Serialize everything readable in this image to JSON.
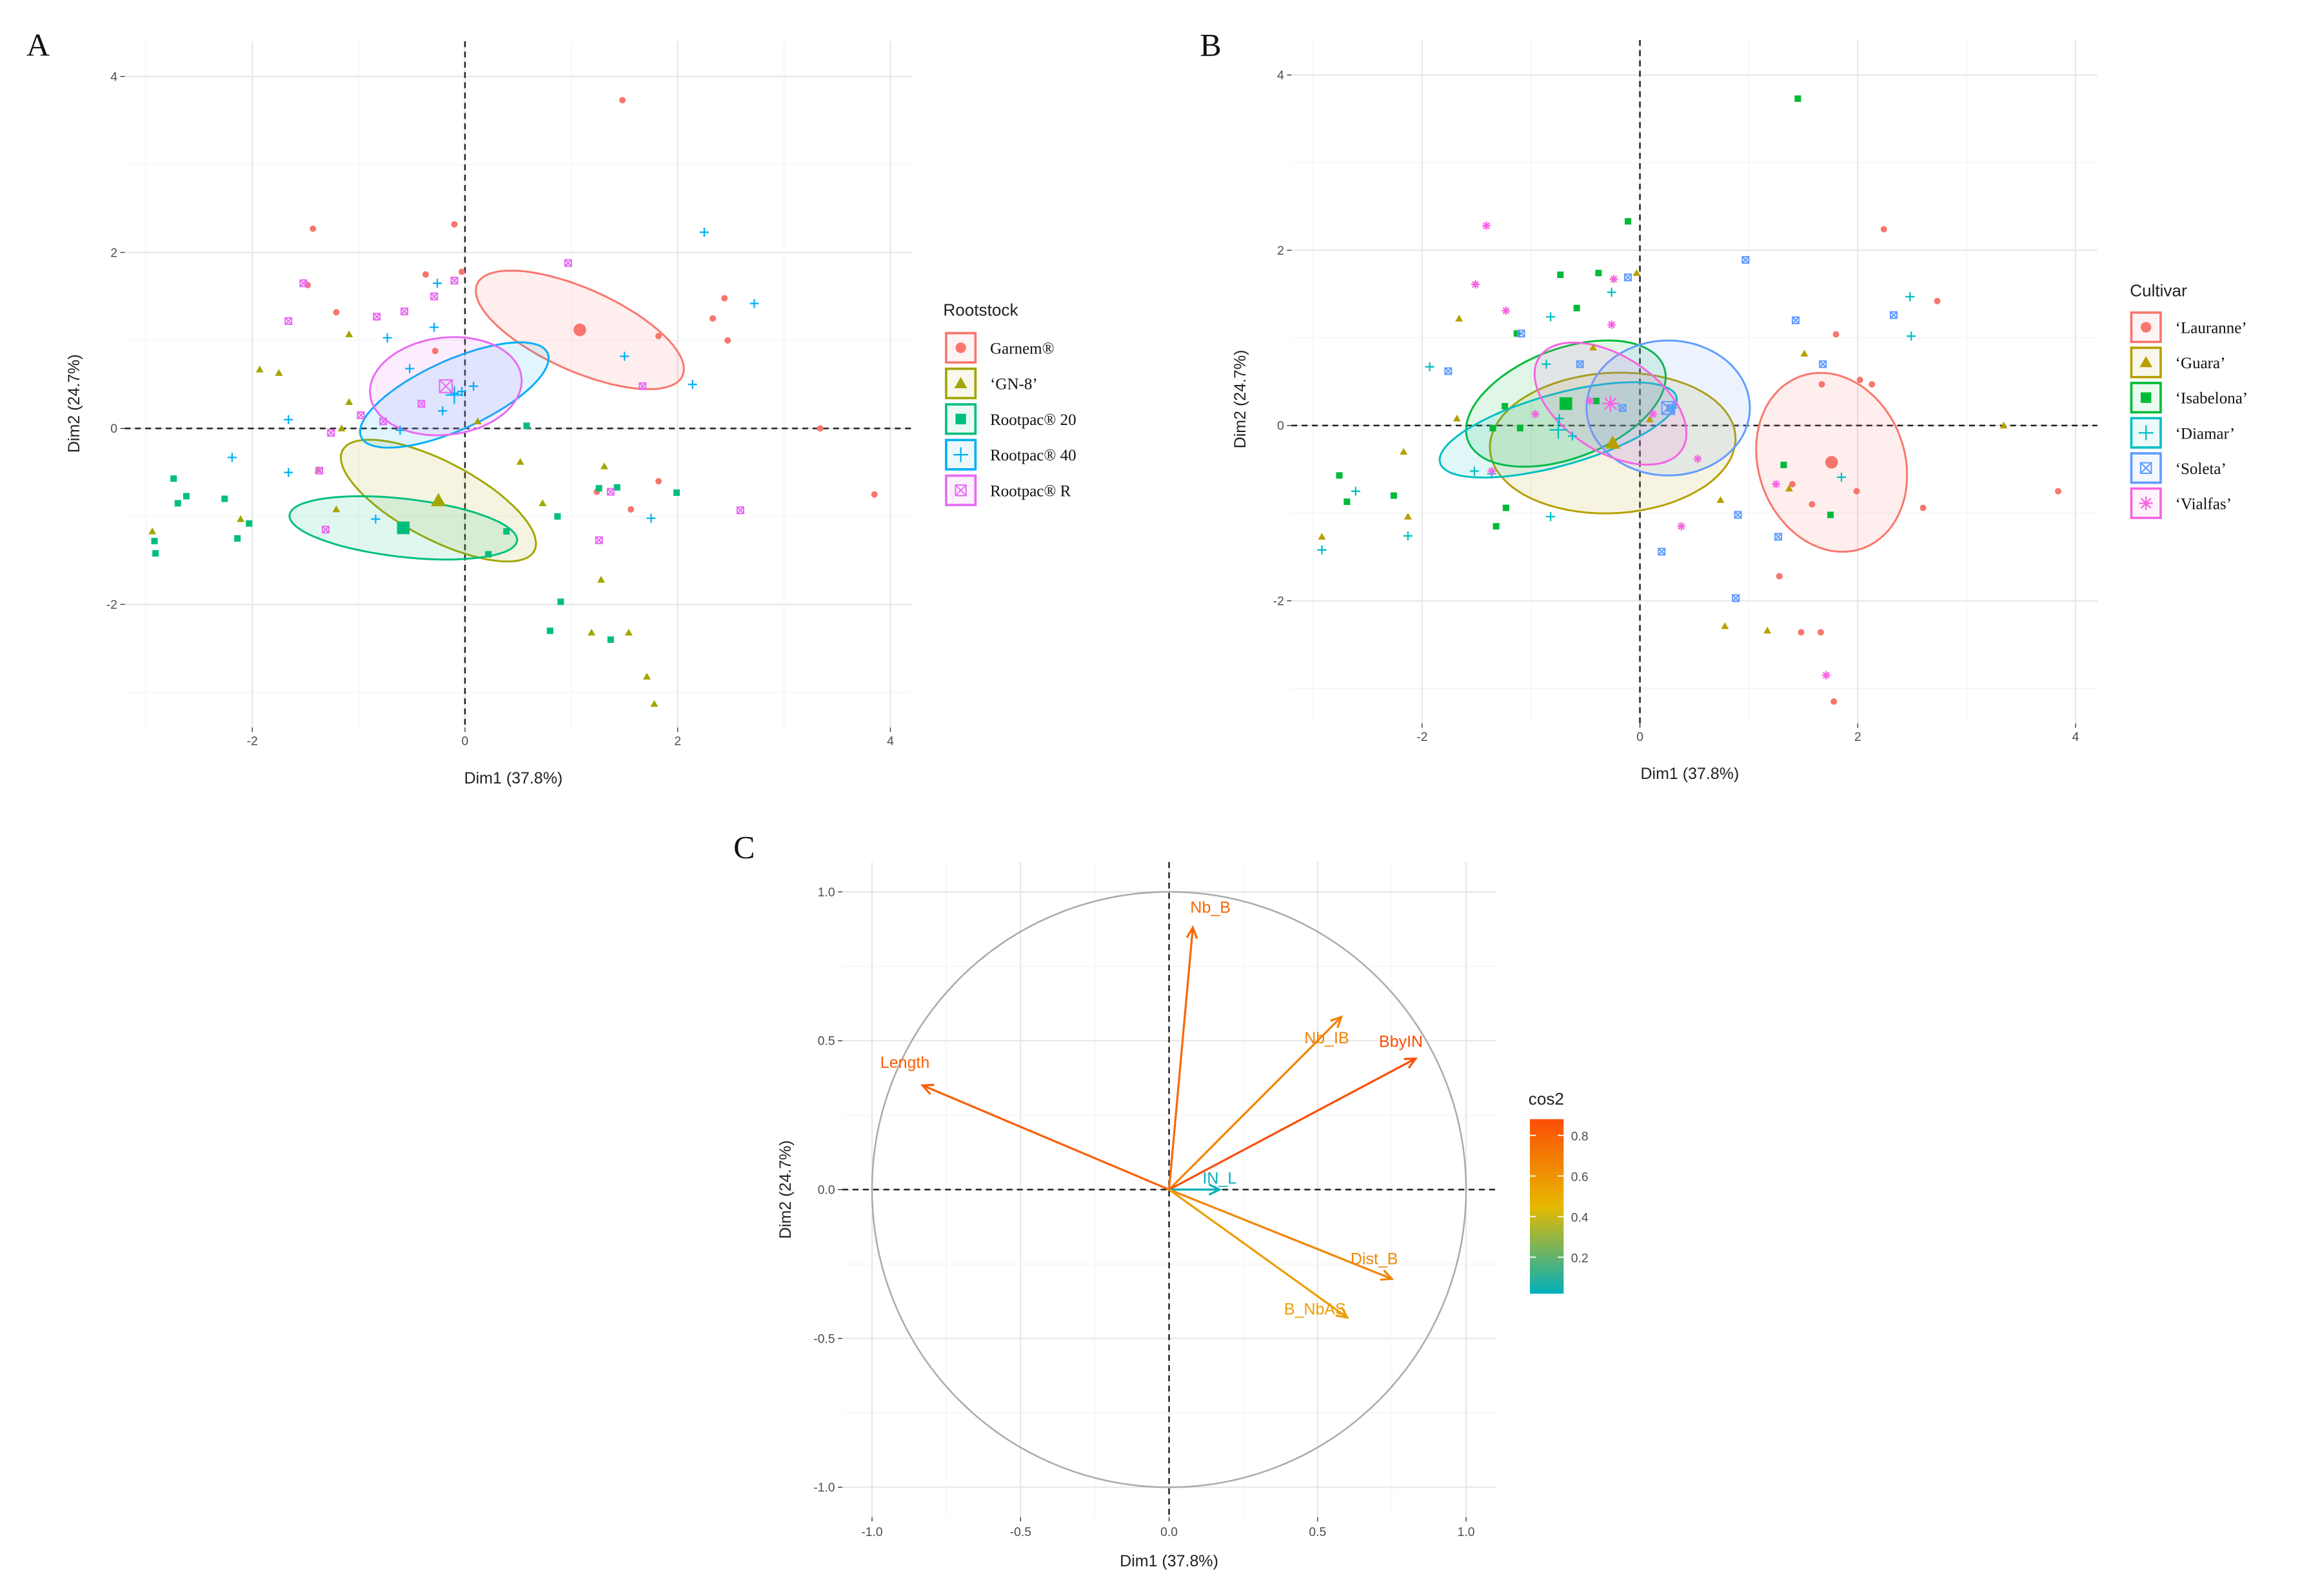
{
  "chart_data": [
    {
      "panel": "A",
      "type": "scatter",
      "xlabel": "Dim1 (37.8%)",
      "ylabel": "Dim2 (24.7%)",
      "xlim": [
        -3.2,
        4.2
      ],
      "ylim": [
        -3.4,
        4.4
      ],
      "xticks": [
        "-2",
        "0",
        "2",
        "4"
      ],
      "yticks": [
        "-2",
        "0",
        "2",
        "4"
      ],
      "grid": true,
      "legend": {
        "title": "Rootstock",
        "placement": "right"
      },
      "series": [
        {
          "name": "Garnem®",
          "shape": "circle",
          "color": "#F8766D",
          "mean": [
            1.08,
            1.12
          ],
          "ellipse": {
            "a": 1.1,
            "b": 0.45,
            "angle": -30
          },
          "points": [
            [
              1.48,
              3.73
            ],
            [
              -1.43,
              2.27
            ],
            [
              -0.1,
              2.32
            ],
            [
              -0.37,
              1.75
            ],
            [
              -0.03,
              1.78
            ],
            [
              -1.48,
              1.63
            ],
            [
              -1.21,
              1.32
            ],
            [
              -0.28,
              0.88
            ],
            [
              2.33,
              1.25
            ],
            [
              2.44,
              1.48
            ],
            [
              2.47,
              1.0
            ],
            [
              1.82,
              1.05
            ],
            [
              3.34,
              0
            ],
            [
              3.85,
              -0.75
            ],
            [
              1.82,
              -0.6
            ],
            [
              1.56,
              -0.92
            ],
            [
              1.24,
              -0.72
            ]
          ]
        },
        {
          "name": "‘GN-8’",
          "shape": "triangle",
          "color": "#A3A500",
          "mean": [
            -0.25,
            -0.82
          ],
          "ellipse": {
            "a": 1.07,
            "b": 0.42,
            "angle": -34
          },
          "points": [
            [
              -1.93,
              0.67
            ],
            [
              -1.75,
              0.63
            ],
            [
              -1.09,
              1.07
            ],
            [
              -1.09,
              0.3
            ],
            [
              -1.38,
              -0.47
            ],
            [
              -1.21,
              -0.92
            ],
            [
              -2.94,
              -1.17
            ],
            [
              -2.11,
              -1.03
            ],
            [
              0.12,
              0.08
            ],
            [
              0.52,
              -0.38
            ],
            [
              0.73,
              -0.85
            ],
            [
              1.31,
              -0.43
            ],
            [
              1.28,
              -1.72
            ],
            [
              1.19,
              -2.32
            ],
            [
              1.54,
              -2.32
            ],
            [
              1.71,
              -2.82
            ],
            [
              1.78,
              -3.13
            ],
            [
              -1.16,
              0
            ]
          ]
        },
        {
          "name": "Rootpac® 20",
          "shape": "square",
          "color": "#00BF7D",
          "mean": [
            -0.58,
            -1.13
          ],
          "ellipse": {
            "a": 1.08,
            "b": 0.33,
            "angle": -8
          },
          "points": [
            [
              -2.74,
              -0.57
            ],
            [
              -2.7,
              -0.85
            ],
            [
              -2.62,
              -0.77
            ],
            [
              -2.92,
              -1.28
            ],
            [
              -2.91,
              -1.42
            ],
            [
              -2.26,
              -0.8
            ],
            [
              -2.14,
              -1.25
            ],
            [
              -2.03,
              -1.08
            ],
            [
              0.58,
              0.03
            ],
            [
              0.39,
              -1.17
            ],
            [
              0.22,
              -1.43
            ],
            [
              0.87,
              -1.0
            ],
            [
              0.9,
              -1.97
            ],
            [
              0.8,
              -2.3
            ],
            [
              1.37,
              -2.4
            ],
            [
              1.26,
              -0.68
            ],
            [
              1.43,
              -0.67
            ],
            [
              1.99,
              -0.73
            ]
          ]
        },
        {
          "name": "Rootpac® 40",
          "shape": "plus",
          "color": "#00B0F6",
          "mean": [
            -0.1,
            0.38
          ],
          "ellipse": {
            "a": 1.0,
            "b": 0.38,
            "angle": 30
          },
          "points": [
            [
              -0.26,
              1.65
            ],
            [
              -0.29,
              1.15
            ],
            [
              -0.73,
              1.03
            ],
            [
              -0.52,
              0.68
            ],
            [
              -0.1,
              0.4
            ],
            [
              -0.21,
              0.2
            ],
            [
              -0.03,
              0.42
            ],
            [
              -0.61,
              -0.02
            ],
            [
              -1.66,
              0.1
            ],
            [
              -1.66,
              -0.5
            ],
            [
              -2.19,
              -0.33
            ],
            [
              -0.84,
              -1.03
            ],
            [
              1.5,
              0.82
            ],
            [
              2.14,
              0.5
            ],
            [
              2.25,
              2.23
            ],
            [
              2.72,
              1.42
            ],
            [
              1.75,
              -1.02
            ],
            [
              0.08,
              0.48
            ]
          ]
        },
        {
          "name": "Rootpac® R",
          "shape": "boxx",
          "color": "#E76BF3",
          "mean": [
            -0.18,
            0.48
          ],
          "ellipse": {
            "a": 0.72,
            "b": 0.55,
            "angle": 12
          },
          "points": [
            [
              -1.52,
              1.65
            ],
            [
              -1.66,
              1.22
            ],
            [
              -0.83,
              1.27
            ],
            [
              -0.57,
              1.33
            ],
            [
              -0.29,
              1.5
            ],
            [
              -0.1,
              1.68
            ],
            [
              0.97,
              1.88
            ],
            [
              -0.98,
              0.15
            ],
            [
              -1.26,
              -0.05
            ],
            [
              -0.77,
              0.08
            ],
            [
              -0.41,
              0.28
            ],
            [
              -1.37,
              -0.48
            ],
            [
              -1.31,
              -1.15
            ],
            [
              1.67,
              0.48
            ],
            [
              1.26,
              -1.27
            ],
            [
              1.37,
              -0.72
            ],
            [
              2.59,
              -0.93
            ]
          ]
        }
      ]
    },
    {
      "panel": "B",
      "type": "scatter",
      "xlabel": "Dim1 (37.8%)",
      "ylabel": "Dim2 (24.7%)",
      "xlim": [
        -3.2,
        4.2
      ],
      "ylim": [
        -3.4,
        4.4
      ],
      "xticks": [
        "-2",
        "0",
        "2",
        "4"
      ],
      "yticks": [
        "-2",
        "0",
        "2",
        "4"
      ],
      "grid": true,
      "legend": {
        "title": "Cultivar",
        "placement": "right"
      },
      "series": [
        {
          "name": "‘Lauranne’",
          "shape": "circle",
          "color": "#F8766D",
          "mean": [
            1.76,
            -0.42
          ],
          "ellipse": {
            "a": 1.03,
            "b": 0.68,
            "angle": 100
          },
          "points": [
            [
              2.24,
              2.24
            ],
            [
              2.73,
              1.42
            ],
            [
              1.8,
              1.04
            ],
            [
              2.02,
              0.52
            ],
            [
              2.13,
              0.47
            ],
            [
              1.67,
              0.47
            ],
            [
              1.28,
              -1.72
            ],
            [
              1.48,
              -2.36
            ],
            [
              1.66,
              -2.36
            ],
            [
              1.78,
              -3.15
            ],
            [
              1.99,
              -0.75
            ],
            [
              2.6,
              -0.94
            ],
            [
              3.84,
              -0.75
            ],
            [
              1.4,
              -0.67
            ],
            [
              1.58,
              -0.9
            ]
          ]
        },
        {
          "name": "‘Guara’",
          "shape": "triangle",
          "color": "#B79F00",
          "mean": [
            -0.25,
            -0.2
          ],
          "ellipse": {
            "a": 1.13,
            "b": 0.8,
            "angle": 5
          },
          "points": [
            [
              -1.66,
              1.22
            ],
            [
              -0.43,
              0.89
            ],
            [
              -0.03,
              1.74
            ],
            [
              1.51,
              0.82
            ],
            [
              3.34,
              0
            ],
            [
              0.74,
              -0.85
            ],
            [
              0.78,
              -2.29
            ],
            [
              1.17,
              -2.34
            ],
            [
              1.37,
              -0.72
            ],
            [
              -2.92,
              -1.27
            ],
            [
              -2.13,
              -1.04
            ],
            [
              -2.17,
              -0.3
            ],
            [
              -1.68,
              0.08
            ],
            [
              0.09,
              0.07
            ]
          ]
        },
        {
          "name": "‘Isabelona’",
          "shape": "square",
          "color": "#00BA38",
          "mean": [
            -0.68,
            0.25
          ],
          "ellipse": {
            "a": 1.0,
            "b": 0.6,
            "angle": 30
          },
          "points": [
            [
              1.45,
              3.73
            ],
            [
              -0.11,
              2.33
            ],
            [
              -0.38,
              1.74
            ],
            [
              -0.73,
              1.72
            ],
            [
              -0.58,
              1.34
            ],
            [
              -1.13,
              1.05
            ],
            [
              -0.4,
              0.28
            ],
            [
              -1.1,
              -0.03
            ],
            [
              -1.35,
              -0.03
            ],
            [
              -2.76,
              -0.57
            ],
            [
              -2.69,
              -0.87
            ],
            [
              -2.26,
              -0.8
            ],
            [
              -1.23,
              -0.94
            ],
            [
              -1.32,
              -1.15
            ],
            [
              1.32,
              -0.45
            ],
            [
              1.75,
              -1.02
            ],
            [
              -1.24,
              0.22
            ]
          ]
        },
        {
          "name": "‘Diamar’",
          "shape": "plus",
          "color": "#00BFC4",
          "mean": [
            -0.75,
            -0.05
          ],
          "ellipse": {
            "a": 1.15,
            "b": 0.4,
            "angle": 20
          },
          "points": [
            [
              -1.93,
              0.67
            ],
            [
              -0.82,
              1.24
            ],
            [
              -0.26,
              1.52
            ],
            [
              -0.86,
              0.7
            ],
            [
              -0.74,
              0.08
            ],
            [
              -0.62,
              -0.12
            ],
            [
              -1.52,
              -0.52
            ],
            [
              -1.36,
              -0.55
            ],
            [
              -2.13,
              -1.26
            ],
            [
              -2.92,
              -1.42
            ],
            [
              -2.61,
              -0.75
            ],
            [
              -0.82,
              -1.04
            ],
            [
              1.85,
              -0.59
            ],
            [
              2.48,
              1.47
            ],
            [
              2.49,
              1.02
            ],
            [
              0.3,
              0.2
            ]
          ]
        },
        {
          "name": "‘Soleta’",
          "shape": "boxx",
          "color": "#619CFF",
          "mean": [
            0.26,
            0.2
          ],
          "ellipse": {
            "a": 0.75,
            "b": 0.77,
            "angle": 0
          },
          "points": [
            [
              0.97,
              1.89
            ],
            [
              1.43,
              1.2
            ],
            [
              2.33,
              1.26
            ],
            [
              1.68,
              0.7
            ],
            [
              0.9,
              -1.02
            ],
            [
              0.88,
              -1.97
            ],
            [
              1.27,
              -1.27
            ],
            [
              0.2,
              -1.44
            ],
            [
              -0.11,
              1.69
            ],
            [
              -0.55,
              0.7
            ],
            [
              -1.09,
              1.05
            ],
            [
              -1.76,
              0.62
            ],
            [
              0.28,
              0.2
            ],
            [
              -0.16,
              0.2
            ]
          ]
        },
        {
          "name": "‘Vialfas’",
          "shape": "star",
          "color": "#F564E3",
          "mean": [
            -0.27,
            0.25
          ],
          "ellipse": {
            "a": 0.85,
            "b": 0.5,
            "angle": -45
          },
          "points": [
            [
              -1.41,
              2.28
            ],
            [
              -1.51,
              1.61
            ],
            [
              -1.23,
              1.31
            ],
            [
              -0.26,
              1.15
            ],
            [
              -0.24,
              1.67
            ],
            [
              -0.96,
              0.13
            ],
            [
              -1.36,
              -0.52
            ],
            [
              0.12,
              0.13
            ],
            [
              0.38,
              -1.15
            ],
            [
              0.53,
              -0.38
            ],
            [
              1.25,
              -0.67
            ],
            [
              1.71,
              -2.85
            ],
            [
              -0.46,
              0.28
            ]
          ]
        }
      ]
    },
    {
      "panel": "C",
      "type": "vector",
      "xlabel": "Dim1 (37.8%)",
      "ylabel": "Dim2 (24.7%)",
      "xlim": [
        -1.1,
        1.1
      ],
      "ylim": [
        -1.1,
        1.1
      ],
      "xticks": [
        "-1.0",
        "-0.5",
        "0.0",
        "0.5",
        "1.0"
      ],
      "yticks": [
        "-1.0",
        "-0.5",
        "0.0",
        "0.5",
        "1.0"
      ],
      "grid": true,
      "colorbar": {
        "title": "cos2",
        "ticks": [
          "0.2",
          "0.4",
          "0.6",
          "0.8"
        ],
        "range": [
          0.02,
          0.88
        ],
        "colors": [
          "#00AFBB",
          "#E7B800",
          "#FC4E07"
        ]
      },
      "variables": [
        {
          "name": "Nb_B",
          "x": 0.08,
          "y": 0.88,
          "cos2": 0.78
        },
        {
          "name": "Nb_IB",
          "x": 0.58,
          "y": 0.58,
          "cos2": 0.67
        },
        {
          "name": "BbyIN",
          "x": 0.83,
          "y": 0.44,
          "cos2": 0.88
        },
        {
          "name": "Length",
          "x": -0.83,
          "y": 0.35,
          "cos2": 0.81
        },
        {
          "name": "IN_L",
          "x": 0.17,
          "y": 0.0,
          "cos2": 0.03
        },
        {
          "name": "Dist_B",
          "x": 0.75,
          "y": -0.3,
          "cos2": 0.66
        },
        {
          "name": "B_NbAS",
          "x": 0.6,
          "y": -0.43,
          "cos2": 0.55
        }
      ]
    }
  ]
}
